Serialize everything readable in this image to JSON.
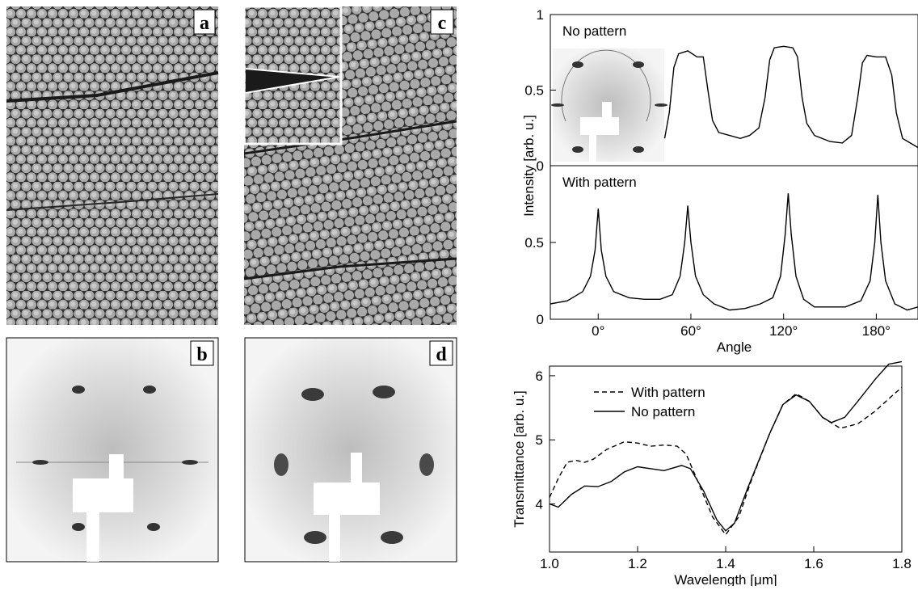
{
  "panel_labels": [
    "a",
    "b",
    "c",
    "d"
  ],
  "chart_data": [
    {
      "type": "line",
      "annotation": "No pattern",
      "ylabel": "Intensity  [arb. u.]",
      "xlim": [
        -31,
        207
      ],
      "ylim": [
        0,
        1
      ],
      "yticks": [
        0,
        0.5,
        1
      ],
      "color": "#000000",
      "x": [
        43,
        46,
        49,
        52,
        58,
        64,
        68,
        71,
        74,
        78,
        85,
        92,
        98,
        104,
        108,
        111,
        114,
        120,
        126,
        129,
        132,
        135,
        140,
        150,
        158,
        164,
        168,
        171,
        174,
        180,
        186,
        190,
        193,
        197,
        202,
        207
      ],
      "values": [
        0.18,
        0.35,
        0.65,
        0.74,
        0.76,
        0.72,
        0.72,
        0.5,
        0.3,
        0.22,
        0.2,
        0.18,
        0.2,
        0.25,
        0.45,
        0.7,
        0.78,
        0.79,
        0.78,
        0.72,
        0.45,
        0.28,
        0.2,
        0.16,
        0.15,
        0.2,
        0.45,
        0.68,
        0.73,
        0.72,
        0.72,
        0.6,
        0.35,
        0.18,
        0.15,
        0.12
      ]
    },
    {
      "type": "line",
      "annotation": "With pattern",
      "xlabel": "Angle",
      "xlim": [
        -31,
        207
      ],
      "ylim": [
        0,
        1
      ],
      "yticks": [
        0,
        0.5
      ],
      "color": "#000000",
      "xticks": [
        {
          "value": 0,
          "label": "0°"
        },
        {
          "value": 60,
          "label": "60°"
        },
        {
          "value": 120,
          "label": "120°"
        },
        {
          "value": 180,
          "label": "180°"
        }
      ],
      "x": [
        -31,
        -20,
        -10,
        -5,
        -2,
        0,
        2,
        5,
        10,
        20,
        30,
        40,
        48,
        53,
        56,
        58,
        60,
        63,
        68,
        75,
        85,
        95,
        105,
        113,
        118,
        121,
        123,
        125,
        128,
        133,
        140,
        150,
        160,
        170,
        176,
        179,
        181,
        183,
        186,
        192,
        200,
        207
      ],
      "values": [
        0.1,
        0.12,
        0.18,
        0.28,
        0.45,
        0.72,
        0.45,
        0.28,
        0.18,
        0.14,
        0.13,
        0.13,
        0.16,
        0.28,
        0.5,
        0.74,
        0.5,
        0.28,
        0.16,
        0.1,
        0.06,
        0.07,
        0.1,
        0.14,
        0.28,
        0.55,
        0.82,
        0.55,
        0.28,
        0.13,
        0.08,
        0.08,
        0.08,
        0.12,
        0.25,
        0.5,
        0.81,
        0.5,
        0.25,
        0.1,
        0.06,
        0.08
      ]
    },
    {
      "type": "line",
      "xlabel": "Wavelength  [μm]",
      "ylabel": "Transmittance  [arb. u.]",
      "xlim": [
        1.0,
        1.8
      ],
      "ylim": [
        3.25,
        6.15
      ],
      "yticks": [
        4,
        5,
        6
      ],
      "xticks": [
        {
          "value": 1.0,
          "label": "1.0"
        },
        1.2,
        1.4,
        1.6,
        1.8
      ],
      "legend": "upper left",
      "series": [
        {
          "name": "With pattern",
          "color": "#000000",
          "dash": true,
          "x": [
            1.0,
            1.02,
            1.04,
            1.06,
            1.08,
            1.1,
            1.13,
            1.17,
            1.2,
            1.23,
            1.26,
            1.29,
            1.31,
            1.34,
            1.37,
            1.4,
            1.43,
            1.46,
            1.5,
            1.53,
            1.56,
            1.59,
            1.62,
            1.66,
            1.7,
            1.74,
            1.78,
            1.8
          ],
          "values": [
            4.1,
            4.4,
            4.65,
            4.68,
            4.65,
            4.7,
            4.85,
            4.97,
            4.95,
            4.9,
            4.92,
            4.9,
            4.78,
            4.3,
            3.8,
            3.52,
            3.8,
            4.4,
            5.1,
            5.55,
            5.72,
            5.6,
            5.35,
            5.18,
            5.25,
            5.45,
            5.7,
            5.82
          ]
        },
        {
          "name": "No pattern",
          "color": "#000000",
          "dash": false,
          "x": [
            1.0,
            1.02,
            1.05,
            1.08,
            1.11,
            1.14,
            1.17,
            1.2,
            1.23,
            1.26,
            1.3,
            1.32,
            1.35,
            1.38,
            1.4,
            1.42,
            1.45,
            1.5,
            1.53,
            1.56,
            1.59,
            1.62,
            1.64,
            1.67,
            1.7,
            1.74,
            1.77,
            1.8
          ],
          "values": [
            4.0,
            3.95,
            4.15,
            4.28,
            4.27,
            4.35,
            4.5,
            4.58,
            4.55,
            4.52,
            4.6,
            4.55,
            4.2,
            3.75,
            3.58,
            3.7,
            4.25,
            5.1,
            5.55,
            5.7,
            5.6,
            5.35,
            5.27,
            5.35,
            5.6,
            5.95,
            6.18,
            6.22
          ]
        }
      ]
    }
  ]
}
